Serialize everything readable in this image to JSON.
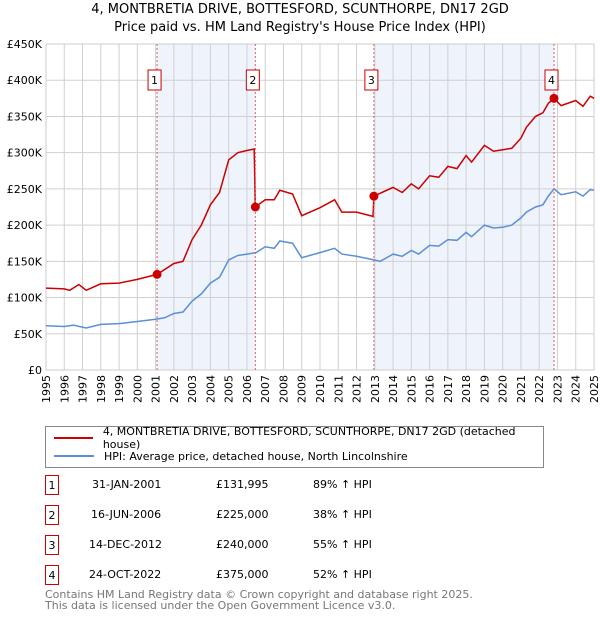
{
  "chart_data": {
    "type": "line",
    "title": "4, MONTBRETIA DRIVE, BOTTESFORD, SCUNTHORPE, DN17 2GD",
    "subtitle": "Price paid vs. HM Land Registry's House Price Index (HPI)",
    "xlim": [
      1995,
      2025
    ],
    "ylim": [
      0,
      450000
    ],
    "x_ticks": [
      "1995",
      "1996",
      "1997",
      "1998",
      "1999",
      "2000",
      "2001",
      "2002",
      "2003",
      "2004",
      "2005",
      "2006",
      "2007",
      "2008",
      "2009",
      "2010",
      "2011",
      "2012",
      "2013",
      "2014",
      "2015",
      "2016",
      "2017",
      "2018",
      "2019",
      "2020",
      "2021",
      "2022",
      "2023",
      "2024",
      "2025"
    ],
    "y_ticks": [
      {
        "v": 0,
        "label": "£0"
      },
      {
        "v": 50000,
        "label": "£50K"
      },
      {
        "v": 100000,
        "label": "£100K"
      },
      {
        "v": 150000,
        "label": "£150K"
      },
      {
        "v": 200000,
        "label": "£200K"
      },
      {
        "v": 250000,
        "label": "£250K"
      },
      {
        "v": 300000,
        "label": "£300K"
      },
      {
        "v": 350000,
        "label": "£350K"
      },
      {
        "v": 400000,
        "label": "£400K"
      },
      {
        "v": 450000,
        "label": "£450K"
      }
    ],
    "grid": true,
    "shaded_ranges": [
      [
        2001.08,
        2006.46
      ],
      [
        2012.95,
        2022.81
      ]
    ],
    "series": [
      {
        "name": "4, MONTBRETIA DRIVE, BOTTESFORD, SCUNTHORPE, DN17 2GD (detached house)",
        "color": "#cc0000",
        "points": [
          [
            1995,
            113000
          ],
          [
            1996,
            112000
          ],
          [
            1996.3,
            110000
          ],
          [
            1996.8,
            118000
          ],
          [
            1997.2,
            110000
          ],
          [
            1998,
            119000
          ],
          [
            1999,
            120000
          ],
          [
            2000,
            125000
          ],
          [
            2001.08,
            131995
          ],
          [
            2002,
            147000
          ],
          [
            2002.5,
            150000
          ],
          [
            2003,
            180000
          ],
          [
            2003.5,
            200000
          ],
          [
            2004,
            228000
          ],
          [
            2004.5,
            245000
          ],
          [
            2005,
            290000
          ],
          [
            2005.5,
            300000
          ],
          [
            2006,
            303000
          ],
          [
            2006.4,
            305000
          ],
          [
            2006.46,
            225000
          ],
          [
            2007,
            235000
          ],
          [
            2007.5,
            235000
          ],
          [
            2007.8,
            248000
          ],
          [
            2008.5,
            243000
          ],
          [
            2009,
            213000
          ],
          [
            2010,
            224000
          ],
          [
            2010.8,
            235000
          ],
          [
            2011.2,
            218000
          ],
          [
            2012,
            218000
          ],
          [
            2012.9,
            212000
          ],
          [
            2012.95,
            240000
          ],
          [
            2014,
            252000
          ],
          [
            2014.5,
            245000
          ],
          [
            2015,
            257000
          ],
          [
            2015.4,
            250000
          ],
          [
            2016,
            268000
          ],
          [
            2016.5,
            266000
          ],
          [
            2017,
            281000
          ],
          [
            2017.5,
            278000
          ],
          [
            2018,
            296000
          ],
          [
            2018.3,
            287000
          ],
          [
            2019,
            310000
          ],
          [
            2019.5,
            302000
          ],
          [
            2020,
            304000
          ],
          [
            2020.5,
            306000
          ],
          [
            2021,
            320000
          ],
          [
            2021.3,
            335000
          ],
          [
            2021.8,
            350000
          ],
          [
            2022.2,
            355000
          ],
          [
            2022.5,
            368000
          ],
          [
            2022.81,
            375000
          ],
          [
            2023.2,
            365000
          ],
          [
            2024,
            372000
          ],
          [
            2024.4,
            364000
          ],
          [
            2024.8,
            378000
          ],
          [
            2025,
            375000
          ]
        ]
      },
      {
        "name": "HPI: Average price, detached house, North Lincolnshire",
        "color": "#5b8fd6",
        "points": [
          [
            1995,
            61000
          ],
          [
            1996,
            60000
          ],
          [
            1996.5,
            62000
          ],
          [
            1997.2,
            58000
          ],
          [
            1998,
            63000
          ],
          [
            1999,
            64000
          ],
          [
            2000,
            67000
          ],
          [
            2001,
            70000
          ],
          [
            2001.5,
            72000
          ],
          [
            2002,
            78000
          ],
          [
            2002.5,
            80000
          ],
          [
            2003,
            95000
          ],
          [
            2003.5,
            105000
          ],
          [
            2004,
            120000
          ],
          [
            2004.5,
            128000
          ],
          [
            2005,
            152000
          ],
          [
            2005.5,
            158000
          ],
          [
            2006,
            160000
          ],
          [
            2006.5,
            162000
          ],
          [
            2007,
            170000
          ],
          [
            2007.5,
            168000
          ],
          [
            2007.8,
            178000
          ],
          [
            2008.5,
            175000
          ],
          [
            2009,
            155000
          ],
          [
            2010,
            162000
          ],
          [
            2010.8,
            168000
          ],
          [
            2011.2,
            160000
          ],
          [
            2012,
            157000
          ],
          [
            2012.95,
            152000
          ],
          [
            2013.3,
            150000
          ],
          [
            2014,
            160000
          ],
          [
            2014.5,
            157000
          ],
          [
            2015,
            165000
          ],
          [
            2015.4,
            160000
          ],
          [
            2016,
            172000
          ],
          [
            2016.5,
            171000
          ],
          [
            2017,
            180000
          ],
          [
            2017.5,
            179000
          ],
          [
            2018,
            190000
          ],
          [
            2018.3,
            184000
          ],
          [
            2019,
            200000
          ],
          [
            2019.5,
            196000
          ],
          [
            2020,
            197000
          ],
          [
            2020.5,
            200000
          ],
          [
            2021,
            210000
          ],
          [
            2021.3,
            218000
          ],
          [
            2021.8,
            225000
          ],
          [
            2022.2,
            228000
          ],
          [
            2022.5,
            240000
          ],
          [
            2022.81,
            250000
          ],
          [
            2023.2,
            242000
          ],
          [
            2024,
            246000
          ],
          [
            2024.4,
            240000
          ],
          [
            2024.8,
            249000
          ],
          [
            2025,
            248000
          ]
        ]
      }
    ],
    "sales": [
      {
        "id": "1",
        "x": 2001.08,
        "price": 131995,
        "date": "31-JAN-2001",
        "price_label": "£131,995",
        "hpi": "89% ↑ HPI"
      },
      {
        "id": "2",
        "x": 2006.46,
        "price": 225000,
        "date": "16-JUN-2006",
        "price_label": "£225,000",
        "hpi": "38% ↑ HPI"
      },
      {
        "id": "3",
        "x": 2012.95,
        "price": 240000,
        "date": "14-DEC-2012",
        "price_label": "£240,000",
        "hpi": "55% ↑ HPI"
      },
      {
        "id": "4",
        "x": 2022.81,
        "price": 375000,
        "date": "24-OCT-2022",
        "price_label": "£375,000",
        "hpi": "52% ↑ HPI"
      }
    ],
    "legend_position": "below"
  },
  "footer": {
    "line1": "Contains HM Land Registry data © Crown copyright and database right 2025.",
    "line2": "This data is licensed under the Open Government Licence v3.0."
  }
}
